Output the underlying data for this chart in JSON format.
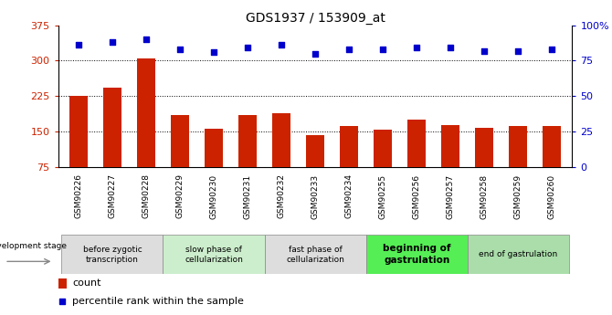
{
  "title": "GDS1937 / 153909_at",
  "categories": [
    "GSM90226",
    "GSM90227",
    "GSM90228",
    "GSM90229",
    "GSM90230",
    "GSM90231",
    "GSM90232",
    "GSM90233",
    "GSM90234",
    "GSM90255",
    "GSM90256",
    "GSM90257",
    "GSM90258",
    "GSM90259",
    "GSM90260"
  ],
  "counts": [
    225,
    242,
    305,
    185,
    155,
    185,
    188,
    143,
    162,
    153,
    175,
    163,
    157,
    162,
    161
  ],
  "percentiles": [
    86,
    88,
    90,
    83,
    81,
    84,
    86,
    80,
    83,
    83,
    84,
    84,
    82,
    82,
    83
  ],
  "ylim_left": [
    75,
    375
  ],
  "ylim_right": [
    0,
    100
  ],
  "yticks_left": [
    75,
    150,
    225,
    300,
    375
  ],
  "yticks_right": [
    0,
    25,
    50,
    75,
    100
  ],
  "yticklabels_right": [
    "0",
    "25",
    "50",
    "75",
    "100%"
  ],
  "bar_color": "#cc2200",
  "dot_color": "#0000cc",
  "stage_groups": [
    {
      "label": "before zygotic\ntranscription",
      "start": 0,
      "end": 3,
      "color": "#dddddd",
      "bold": false
    },
    {
      "label": "slow phase of\ncellularization",
      "start": 3,
      "end": 6,
      "color": "#cceecc",
      "bold": false
    },
    {
      "label": "fast phase of\ncellularization",
      "start": 6,
      "end": 9,
      "color": "#dddddd",
      "bold": false
    },
    {
      "label": "beginning of\ngastrulation",
      "start": 9,
      "end": 12,
      "color": "#55ee55",
      "bold": true
    },
    {
      "label": "end of gastrulation",
      "start": 12,
      "end": 15,
      "color": "#aaddaa",
      "bold": false
    }
  ],
  "legend_labels": [
    "count",
    "percentile rank within the sample"
  ],
  "dev_stage_label": "development stage"
}
